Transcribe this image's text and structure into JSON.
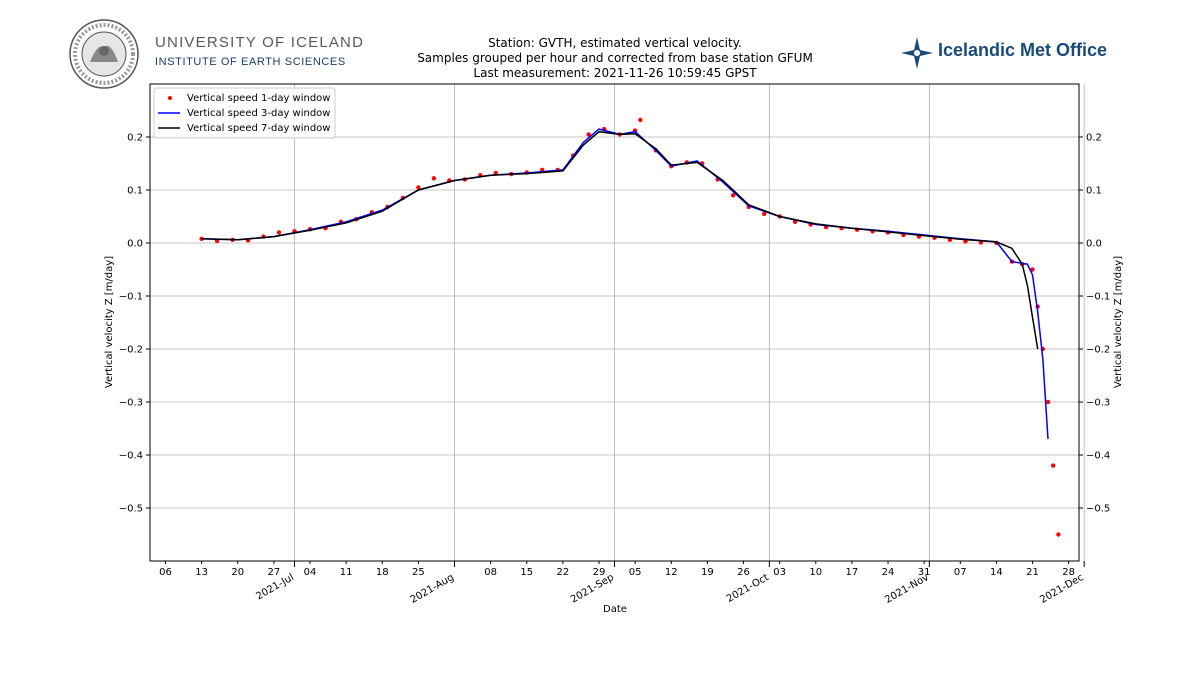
{
  "header": {
    "university_name": "UNIVERSITY OF ICELAND",
    "institute_name": "INSTITUTE OF EARTH SCIENCES",
    "met_office_name": "Icelandic Met Office",
    "seal_text": "UNIVERSITATIS ISLANDIAE SIGILLUM"
  },
  "chart_data": {
    "type": "scatter",
    "title_lines": [
      "Station: GVTH, estimated vertical velocity.",
      "Samples grouped per hour and corrected from base station GFUM",
      "Last measurement: 2021-11-26 10:59:45 GPST"
    ],
    "xlabel": "Date",
    "ylabel": "Vertical velocity Z [m/day]",
    "ylabel_right": "Vertical velocity Z [m/day]",
    "xlim": [
      "2021-06-03",
      "2021-11-30"
    ],
    "ylim": [
      -0.6,
      0.3
    ],
    "grid": true,
    "legend_position": "upper-left",
    "y_ticks": [
      {
        "value": 0.2,
        "label": "0.2"
      },
      {
        "value": 0.1,
        "label": "0.1"
      },
      {
        "value": 0.0,
        "label": "0.0"
      },
      {
        "value": -0.1,
        "label": "−0.1"
      },
      {
        "value": -0.2,
        "label": "−0.2"
      },
      {
        "value": -0.3,
        "label": "−0.3"
      },
      {
        "value": -0.4,
        "label": "−0.4"
      },
      {
        "value": -0.5,
        "label": "−0.5"
      }
    ],
    "x_minor_ticks": [
      {
        "date": "2021-06-06",
        "label": "06"
      },
      {
        "date": "2021-06-13",
        "label": "13"
      },
      {
        "date": "2021-06-20",
        "label": "20"
      },
      {
        "date": "2021-06-27",
        "label": "27"
      },
      {
        "date": "2021-07-04",
        "label": "04"
      },
      {
        "date": "2021-07-11",
        "label": "11"
      },
      {
        "date": "2021-07-18",
        "label": "18"
      },
      {
        "date": "2021-07-25",
        "label": "25"
      },
      {
        "date": "2021-08-08",
        "label": "08"
      },
      {
        "date": "2021-08-15",
        "label": "15"
      },
      {
        "date": "2021-08-22",
        "label": "22"
      },
      {
        "date": "2021-08-29",
        "label": "29"
      },
      {
        "date": "2021-09-05",
        "label": "05"
      },
      {
        "date": "2021-09-12",
        "label": "12"
      },
      {
        "date": "2021-09-19",
        "label": "19"
      },
      {
        "date": "2021-09-26",
        "label": "26"
      },
      {
        "date": "2021-10-03",
        "label": "03"
      },
      {
        "date": "2021-10-10",
        "label": "10"
      },
      {
        "date": "2021-10-17",
        "label": "17"
      },
      {
        "date": "2021-10-24",
        "label": "24"
      },
      {
        "date": "2021-10-31",
        "label": "31"
      },
      {
        "date": "2021-11-07",
        "label": "07"
      },
      {
        "date": "2021-11-14",
        "label": "14"
      },
      {
        "date": "2021-11-21",
        "label": "21"
      },
      {
        "date": "2021-11-28",
        "label": "28"
      }
    ],
    "x_major_ticks": [
      {
        "date": "2021-07-01",
        "label": "2021-Jul"
      },
      {
        "date": "2021-08-01",
        "label": "2021-Aug"
      },
      {
        "date": "2021-09-01",
        "label": "2021-Sep"
      },
      {
        "date": "2021-10-01",
        "label": "2021-Oct"
      },
      {
        "date": "2021-11-01",
        "label": "2021-Nov"
      },
      {
        "date": "2021-12-01",
        "label": "2021-Dec"
      }
    ],
    "series": [
      {
        "name": "Vertical speed 1-day window",
        "style": "points",
        "color": "#ff0000",
        "x": [
          "2021-06-13",
          "2021-06-16",
          "2021-06-19",
          "2021-06-22",
          "2021-06-25",
          "2021-06-28",
          "2021-07-01",
          "2021-07-04",
          "2021-07-07",
          "2021-07-10",
          "2021-07-13",
          "2021-07-16",
          "2021-07-19",
          "2021-07-22",
          "2021-07-25",
          "2021-07-28",
          "2021-07-31",
          "2021-08-03",
          "2021-08-06",
          "2021-08-09",
          "2021-08-12",
          "2021-08-15",
          "2021-08-18",
          "2021-08-21",
          "2021-08-24",
          "2021-08-27",
          "2021-08-30",
          "2021-09-02",
          "2021-09-05",
          "2021-09-06",
          "2021-09-09",
          "2021-09-12",
          "2021-09-15",
          "2021-09-18",
          "2021-09-21",
          "2021-09-24",
          "2021-09-27",
          "2021-09-30",
          "2021-10-03",
          "2021-10-06",
          "2021-10-09",
          "2021-10-12",
          "2021-10-15",
          "2021-10-18",
          "2021-10-21",
          "2021-10-24",
          "2021-10-27",
          "2021-10-30",
          "2021-11-02",
          "2021-11-05",
          "2021-11-08",
          "2021-11-11",
          "2021-11-14",
          "2021-11-17",
          "2021-11-19",
          "2021-11-21",
          "2021-11-22",
          "2021-11-23",
          "2021-11-24",
          "2021-11-25",
          "2021-11-26"
        ],
        "y": [
          0.008,
          0.004,
          0.006,
          0.005,
          0.012,
          0.02,
          0.022,
          0.026,
          0.028,
          0.04,
          0.045,
          0.058,
          0.068,
          0.085,
          0.105,
          0.122,
          0.118,
          0.12,
          0.128,
          0.132,
          0.13,
          0.133,
          0.138,
          0.138,
          0.165,
          0.205,
          0.215,
          0.205,
          0.212,
          0.232,
          0.175,
          0.145,
          0.152,
          0.15,
          0.12,
          0.09,
          0.068,
          0.055,
          0.05,
          0.04,
          0.035,
          0.03,
          0.028,
          0.025,
          0.022,
          0.02,
          0.015,
          0.012,
          0.01,
          0.006,
          0.003,
          0.001,
          0.0,
          -0.035,
          -0.04,
          -0.05,
          -0.12,
          -0.2,
          -0.3,
          -0.42,
          -0.55
        ]
      },
      {
        "name": "Vertical speed 3-day window",
        "style": "line",
        "color": "#0000ff",
        "x": [
          "2021-06-13",
          "2021-06-20",
          "2021-06-27",
          "2021-07-04",
          "2021-07-11",
          "2021-07-18",
          "2021-07-25",
          "2021-08-01",
          "2021-08-08",
          "2021-08-15",
          "2021-08-22",
          "2021-08-26",
          "2021-08-29",
          "2021-09-02",
          "2021-09-05",
          "2021-09-09",
          "2021-09-12",
          "2021-09-17",
          "2021-09-22",
          "2021-09-27",
          "2021-10-03",
          "2021-10-10",
          "2021-10-17",
          "2021-10-24",
          "2021-10-31",
          "2021-11-07",
          "2021-11-14",
          "2021-11-17",
          "2021-11-20",
          "2021-11-21",
          "2021-11-22",
          "2021-11-23",
          "2021-11-24"
        ],
        "y": [
          0.008,
          0.006,
          0.012,
          0.025,
          0.04,
          0.062,
          0.1,
          0.118,
          0.128,
          0.132,
          0.138,
          0.19,
          0.215,
          0.205,
          0.21,
          0.175,
          0.145,
          0.155,
          0.115,
          0.07,
          0.05,
          0.035,
          0.028,
          0.022,
          0.015,
          0.008,
          0.002,
          -0.035,
          -0.04,
          -0.06,
          -0.13,
          -0.22,
          -0.37
        ]
      },
      {
        "name": "Vertical speed 7-day window",
        "style": "line",
        "color": "#000000",
        "x": [
          "2021-06-13",
          "2021-06-20",
          "2021-06-27",
          "2021-07-04",
          "2021-07-11",
          "2021-07-18",
          "2021-07-25",
          "2021-08-01",
          "2021-08-08",
          "2021-08-15",
          "2021-08-22",
          "2021-08-26",
          "2021-08-29",
          "2021-09-02",
          "2021-09-05",
          "2021-09-09",
          "2021-09-12",
          "2021-09-17",
          "2021-09-22",
          "2021-09-27",
          "2021-10-03",
          "2021-10-10",
          "2021-10-17",
          "2021-10-24",
          "2021-10-31",
          "2021-11-07",
          "2021-11-14",
          "2021-11-17",
          "2021-11-19",
          "2021-11-20",
          "2021-11-21",
          "2021-11-22"
        ],
        "y": [
          0.008,
          0.006,
          0.012,
          0.024,
          0.038,
          0.06,
          0.1,
          0.118,
          0.128,
          0.131,
          0.136,
          0.185,
          0.21,
          0.205,
          0.206,
          0.178,
          0.147,
          0.152,
          0.118,
          0.072,
          0.05,
          0.036,
          0.028,
          0.021,
          0.014,
          0.007,
          0.002,
          -0.01,
          -0.04,
          -0.08,
          -0.14,
          -0.2
        ]
      }
    ]
  }
}
